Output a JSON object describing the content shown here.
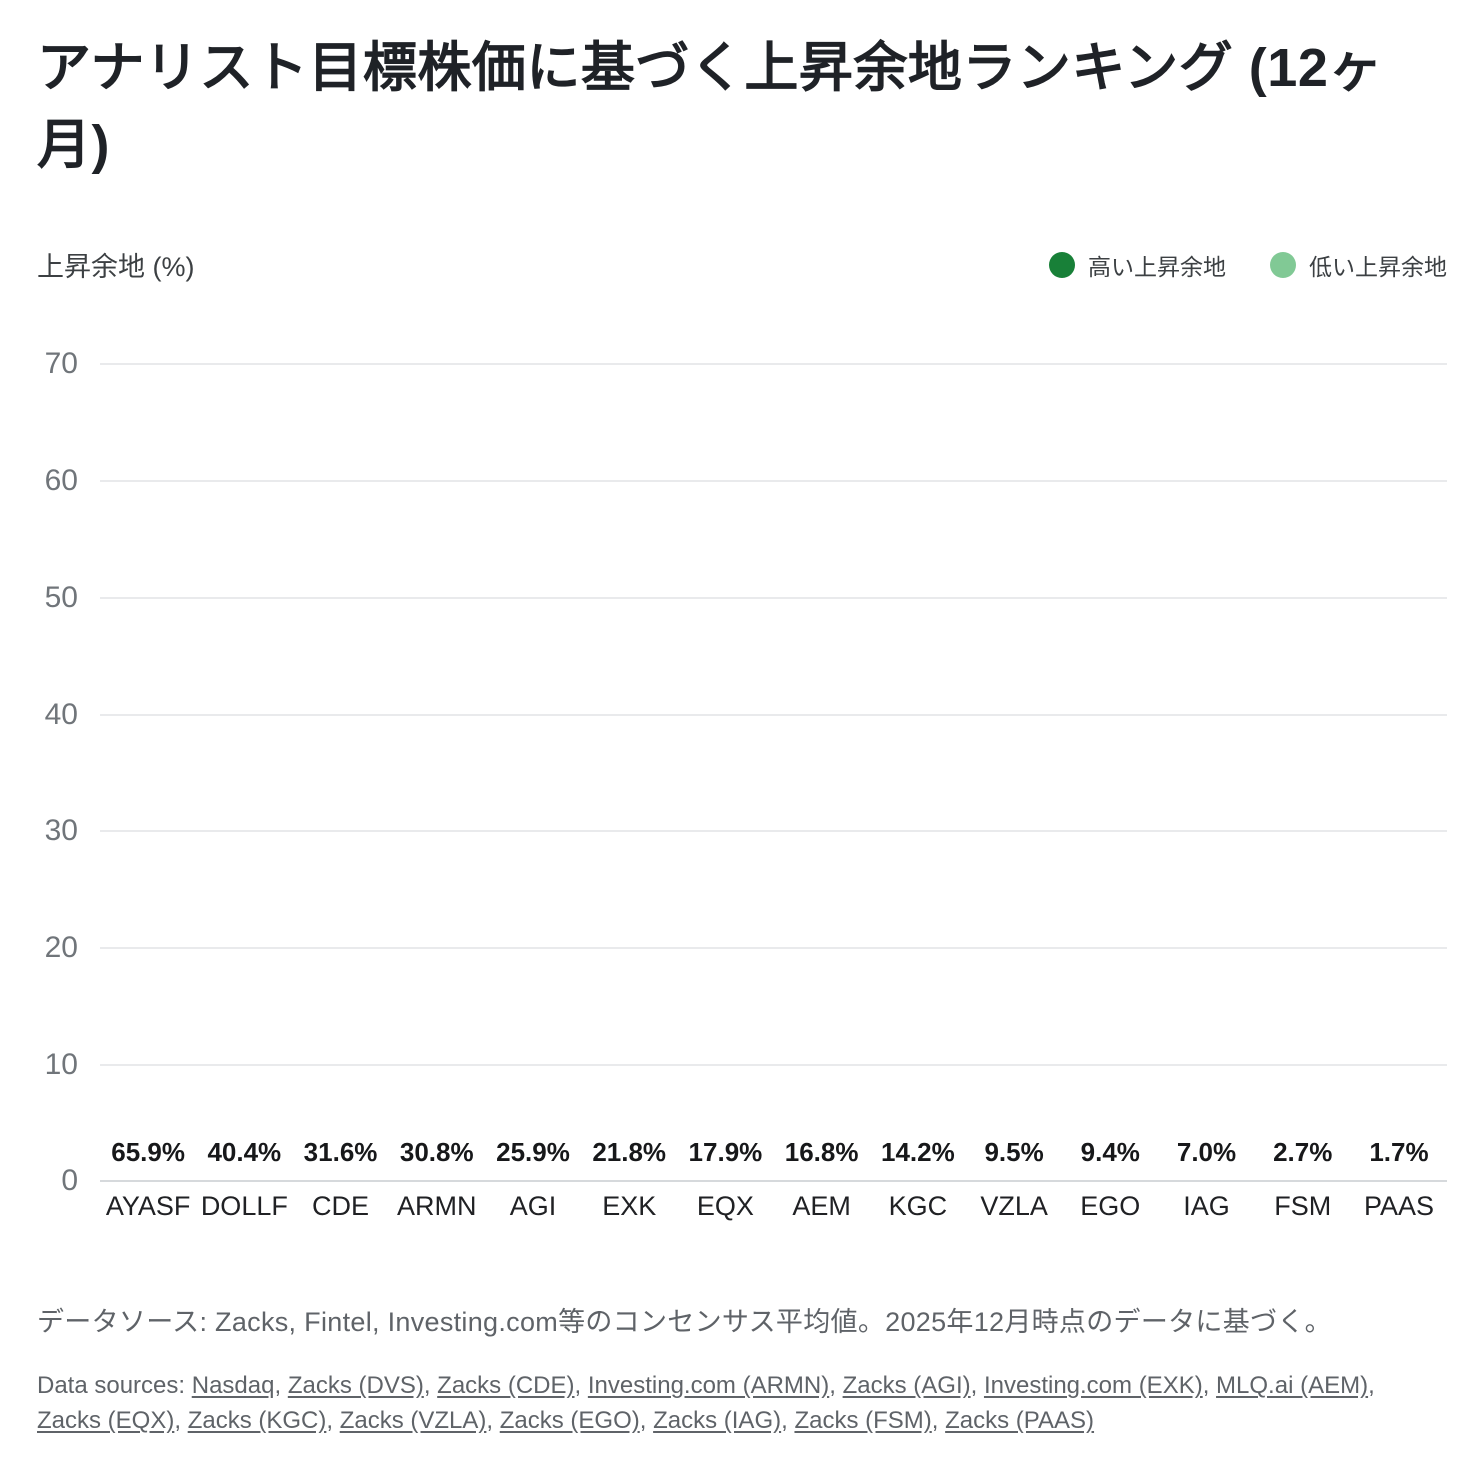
{
  "title": "アナリスト目標株価に基づく上昇余地ランキング (12ヶ月)",
  "y_axis_title": "上昇余地 (%)",
  "legend": [
    {
      "label": "高い上昇余地",
      "color": "#188038"
    },
    {
      "label": "低い上昇余地",
      "color": "#81c995"
    }
  ],
  "chart_data": {
    "type": "bar",
    "title": "アナリスト目標株価に基づく上昇余地ランキング (12ヶ月)",
    "xlabel": "",
    "ylabel": "上昇余地 (%)",
    "ylim": [
      0,
      70
    ],
    "yticks": [
      0,
      10,
      20,
      30,
      40,
      50,
      60,
      70
    ],
    "grid": true,
    "legend_position": "top-right",
    "categories": [
      "AYASF",
      "DOLLF",
      "CDE",
      "ARMN",
      "AGI",
      "EXK",
      "EQX",
      "AEM",
      "KGC",
      "VZLA",
      "EGO",
      "IAG",
      "FSM",
      "PAAS"
    ],
    "values": [
      65.9,
      40.4,
      31.6,
      30.8,
      25.9,
      21.8,
      17.9,
      16.8,
      14.2,
      9.5,
      9.4,
      7.0,
      2.7,
      1.7
    ],
    "value_labels": [
      "65.9%",
      "40.4%",
      "31.6%",
      "30.8%",
      "25.9%",
      "21.8%",
      "17.9%",
      "16.8%",
      "14.2%",
      "9.5%",
      "9.4%",
      "7.0%",
      "2.7%",
      "1.7%"
    ],
    "bar_colors": [
      "#188038",
      "#188038",
      "#188038",
      "#34a853",
      "#34a853",
      "#34a853",
      "#34a853",
      "#34a853",
      "#81c995",
      "#81c995",
      "#81c995",
      "#81c995",
      "#81c995",
      "#81c995"
    ]
  },
  "colors": {
    "high_upside": "#188038",
    "mid_upside": "#34a853",
    "low_upside": "#81c995",
    "gridline": "#e9eaec",
    "baseline": "#d6d9dc",
    "text_primary": "#202124",
    "text_secondary": "#5f6368"
  },
  "footer": {
    "jp_note": "データソース: Zacks, Fintel, Investing.com等のコンセンサス平均値。2025年12月時点のデータに基づく。",
    "en_prefix": "Data sources: ",
    "en_separator": ", ",
    "en_sources": [
      "Nasdaq",
      "Zacks (DVS)",
      "Zacks (CDE)",
      "Investing.com (ARMN)",
      "Zacks (AGI)",
      "Investing.com (EXK)",
      "MLQ.ai (AEM)",
      "Zacks (EQX)",
      "Zacks (KGC)",
      "Zacks (VZLA)",
      "Zacks (EGO)",
      "Zacks (IAG)",
      "Zacks (FSM)",
      "Zacks (PAAS)"
    ]
  }
}
